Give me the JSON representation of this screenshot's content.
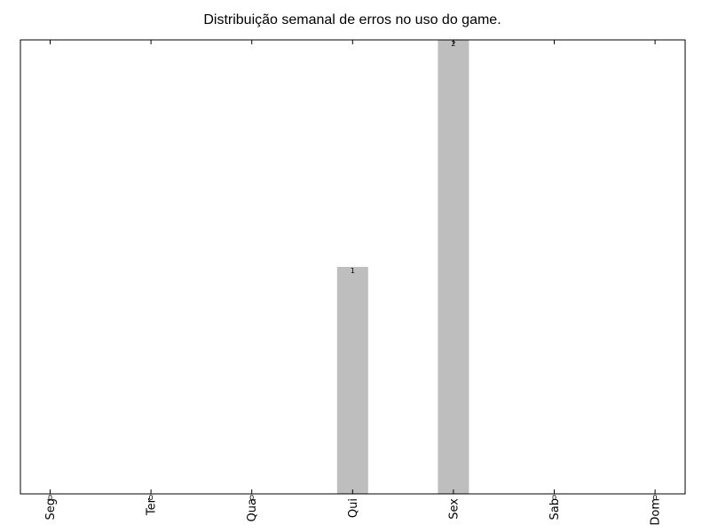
{
  "chart_data": {
    "type": "bar",
    "title": "Distribuição semanal de erros no uso do game.",
    "xlabel": "",
    "ylabel": "",
    "categories": [
      "Seg",
      "Ter",
      "Qua",
      "Qui",
      "Sex",
      "Sab",
      "Dom"
    ],
    "values": [
      0,
      0,
      0,
      1,
      2,
      0,
      0
    ],
    "data_labels": [
      "0",
      "0",
      "0",
      "1",
      "2",
      "0",
      "0"
    ],
    "ylim": [
      0,
      2
    ],
    "grid": false,
    "bar_color": "#bebebe",
    "tick_label_rotation": "vertical"
  }
}
